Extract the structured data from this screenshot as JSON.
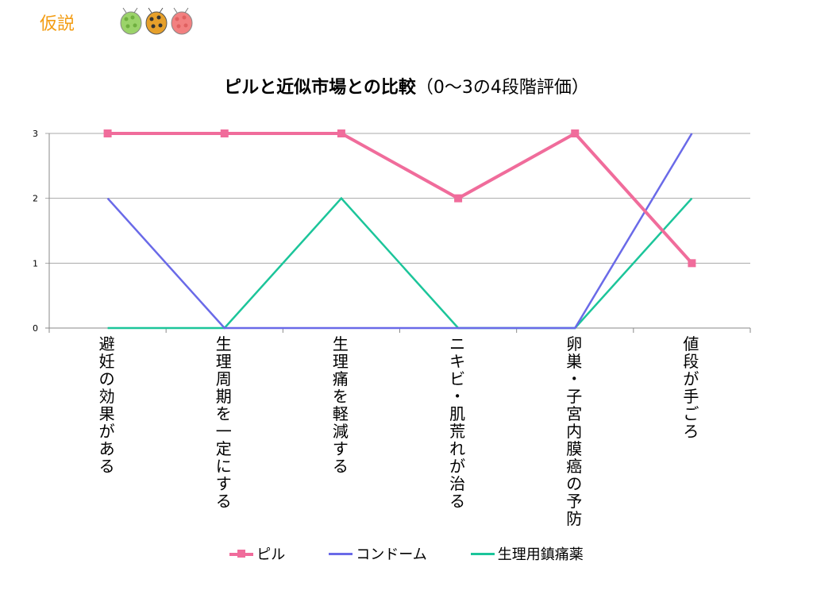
{
  "slide": {
    "title": "仮説"
  },
  "chart_data": {
    "type": "line",
    "title": "ピルと近似市場との比較",
    "subtitle": "（0〜3の4段階評価）",
    "categories": [
      "避妊の効果がある",
      "生理周期を一定にする",
      "生理痛を軽減する",
      "ニキビ・肌荒れが治る",
      "卵巣・子宮内膜癌の予防",
      "値段が手ごろ"
    ],
    "y_ticks": [
      "0",
      "1",
      "2",
      "3"
    ],
    "ylim": [
      0,
      3
    ],
    "grid": true,
    "legend_position": "bottom",
    "series": [
      {
        "name": "ピル",
        "values": [
          3,
          3,
          3,
          2,
          3,
          1
        ],
        "color": "#F06C9B",
        "marker": "square"
      },
      {
        "name": "コンドーム",
        "values": [
          2,
          0,
          0,
          0,
          0,
          3
        ],
        "color": "#6A6AE8",
        "marker": "none"
      },
      {
        "name": "生理用鎮痛薬",
        "values": [
          0,
          0,
          2,
          0,
          0,
          2
        ],
        "color": "#1CC59A",
        "marker": "none"
      }
    ]
  }
}
